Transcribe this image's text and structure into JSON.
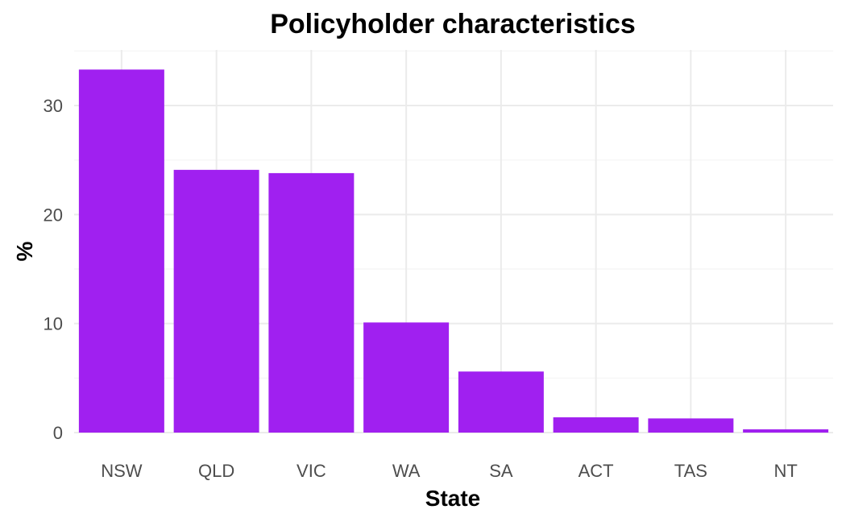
{
  "chart_data": {
    "type": "bar",
    "title": "Policyholder characteristics",
    "xlabel": "State",
    "ylabel": "%",
    "categories": [
      "NSW",
      "QLD",
      "VIC",
      "WA",
      "SA",
      "ACT",
      "TAS",
      "NT"
    ],
    "values": [
      33.3,
      24.1,
      23.8,
      10.1,
      5.6,
      1.4,
      1.3,
      0.3
    ],
    "ylim": [
      0,
      35
    ],
    "yticks": [
      0,
      10,
      20,
      30
    ],
    "grid": true,
    "legend": "none",
    "bar_color": "#a020f0"
  }
}
